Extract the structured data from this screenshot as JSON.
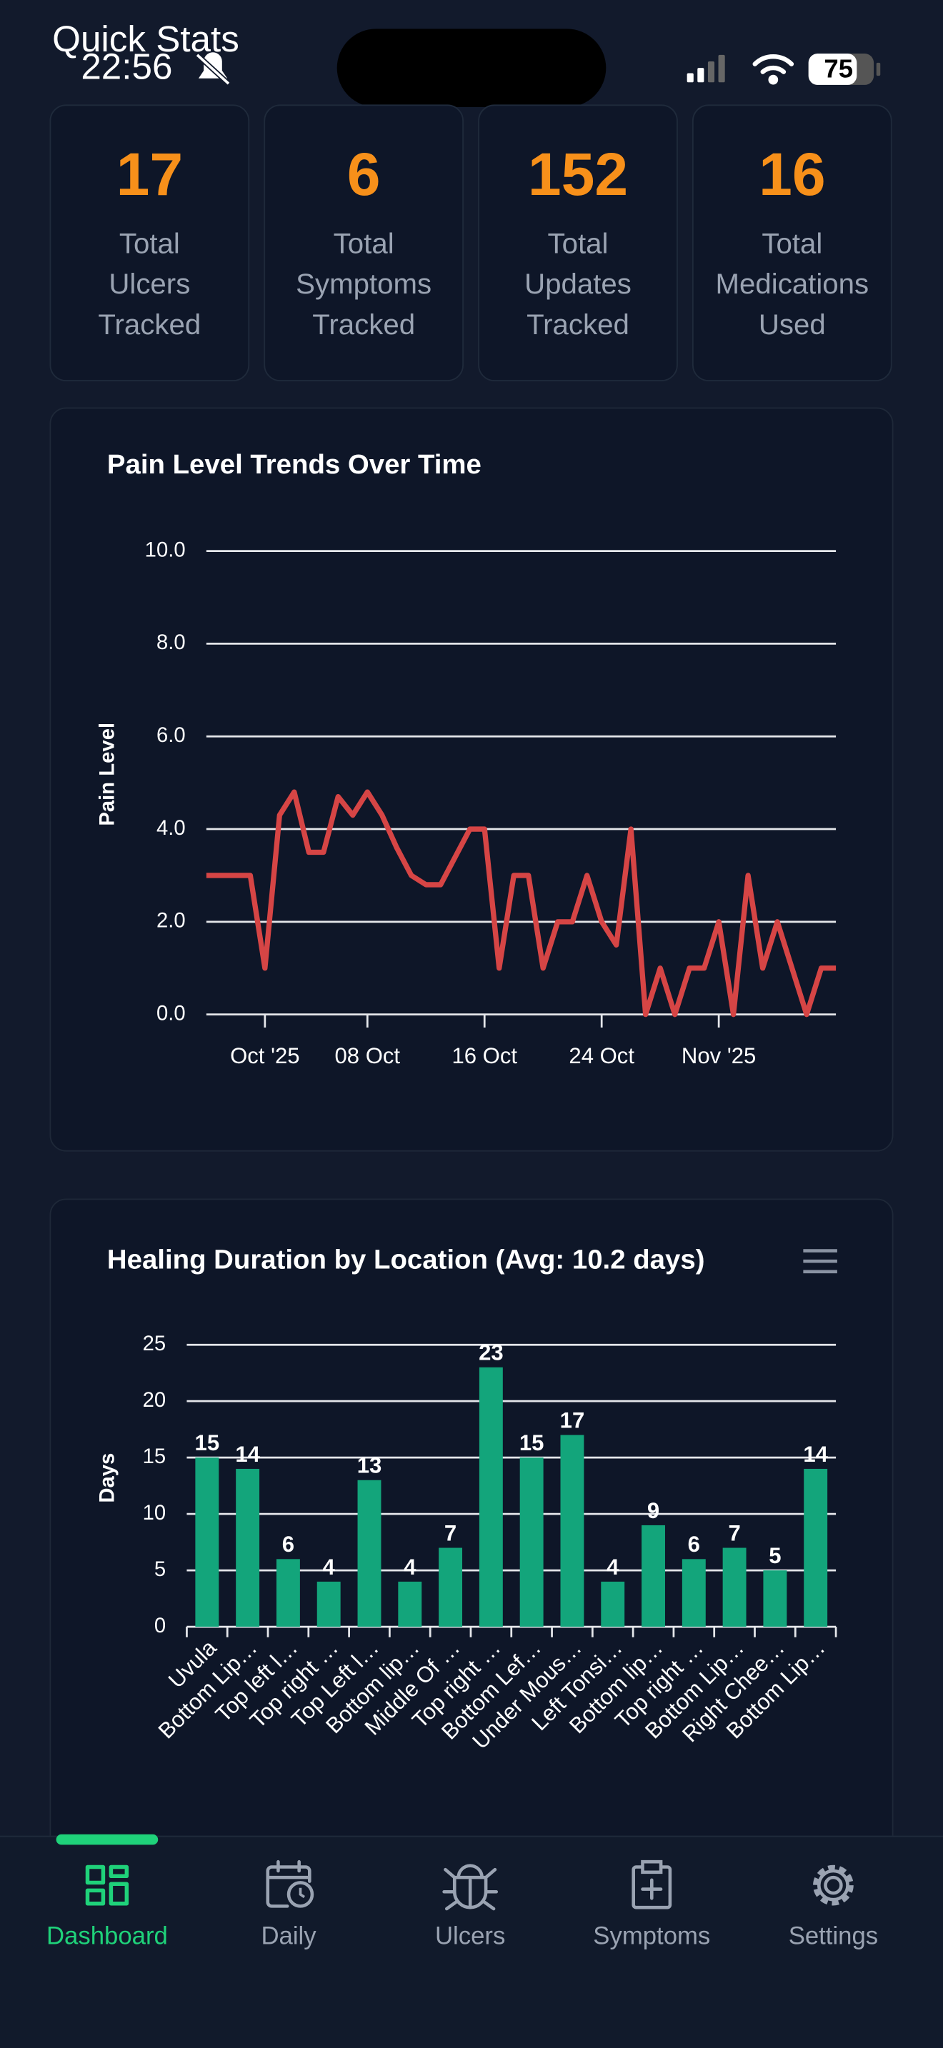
{
  "header": {
    "title": "Quick Stats"
  },
  "status_bar": {
    "time": "22:56",
    "battery": "75"
  },
  "stats": [
    {
      "value": 17,
      "label_lines": [
        "Total",
        "Ulcers",
        "Tracked"
      ]
    },
    {
      "value": 6,
      "label_lines": [
        "Total",
        "Symptoms",
        "Tracked"
      ]
    },
    {
      "value": 152,
      "label_lines": [
        "Total",
        "Updates",
        "Tracked"
      ]
    },
    {
      "value": 16,
      "label_lines": [
        "Total",
        "Medications",
        "Used"
      ]
    }
  ],
  "chart_data": [
    {
      "type": "line",
      "title": "Pain Level Trends Over Time",
      "y_label": "Pain Level",
      "color": "#d64545",
      "x": [
        "2025-09-27",
        "2025-09-28",
        "2025-09-29",
        "2025-09-30",
        "2025-10-01",
        "2025-10-02",
        "2025-10-03",
        "2025-10-04",
        "2025-10-05",
        "2025-10-06",
        "2025-10-07",
        "2025-10-08",
        "2025-10-09",
        "2025-10-10",
        "2025-10-11",
        "2025-10-12",
        "2025-10-13",
        "2025-10-14",
        "2025-10-15",
        "2025-10-16",
        "2025-10-17",
        "2025-10-18",
        "2025-10-19",
        "2025-10-20",
        "2025-10-21",
        "2025-10-22",
        "2025-10-23",
        "2025-10-24",
        "2025-10-25",
        "2025-10-26",
        "2025-10-27",
        "2025-10-28",
        "2025-10-29",
        "2025-10-30",
        "2025-10-31",
        "2025-11-01",
        "2025-11-02",
        "2025-11-03",
        "2025-11-04",
        "2025-11-05",
        "2025-11-06",
        "2025-11-07",
        "2025-11-08",
        "2025-11-09"
      ],
      "values": [
        3.0,
        3.0,
        3.0,
        3.0,
        1.0,
        4.3,
        4.8,
        3.5,
        3.5,
        4.7,
        4.3,
        4.8,
        4.3,
        3.6,
        3.0,
        2.8,
        2.8,
        3.4,
        4.0,
        4.0,
        1.0,
        3.0,
        3.0,
        1.0,
        2.0,
        2.0,
        3.0,
        2.0,
        1.5,
        4.0,
        0.0,
        1.0,
        0.0,
        1.0,
        1.0,
        2.0,
        0.0,
        3.0,
        1.0,
        2.0,
        1.0,
        0.0,
        1.0,
        1.0
      ],
      "xlim": [
        "2025-09-27",
        "2025-11-09"
      ],
      "xticks": [
        {
          "value": "2025-10-01",
          "label": "Oct '25"
        },
        {
          "value": "2025-10-08",
          "label": "08 Oct"
        },
        {
          "value": "2025-10-16",
          "label": "16 Oct"
        },
        {
          "value": "2025-10-24",
          "label": "24 Oct"
        },
        {
          "value": "2025-11-01",
          "label": "Nov '25"
        }
      ],
      "ylim": [
        0,
        10
      ],
      "yticks": [
        {
          "value": 0,
          "label": "0.0"
        },
        {
          "value": 2,
          "label": "2.0"
        },
        {
          "value": 4,
          "label": "4.0"
        },
        {
          "value": 6,
          "label": "6.0"
        },
        {
          "value": 8,
          "label": "8.0"
        },
        {
          "value": 10,
          "label": "10.0"
        }
      ],
      "grid": true
    },
    {
      "type": "bar",
      "title": "Healing Duration by Location (Avg: 10.2 days)",
      "y_label": "Days",
      "color": "#13a57b",
      "categories": [
        "Uvula",
        "Bottom Lip…",
        "Top left l…",
        "Top right …",
        "Top Left l…",
        "Bottom lip…",
        "Middle Of …",
        "Top right …",
        "Bottom Lef…",
        "Under Mous…",
        "Left Tonsi…",
        "Bottom lip…",
        "Top right …",
        "Bottom Lip…",
        "Right Chee…",
        "Bottom Lip…"
      ],
      "values": [
        15,
        14,
        6,
        4,
        13,
        4,
        7,
        23,
        15,
        17,
        4,
        9,
        6,
        7,
        5,
        14
      ],
      "ylim": [
        0,
        25
      ],
      "yticks": [
        0,
        5,
        10,
        15,
        20,
        25
      ],
      "grid": true,
      "data_labels": true
    }
  ],
  "nav": {
    "items": [
      {
        "label": "Dashboard",
        "active": true
      },
      {
        "label": "Daily",
        "active": false
      },
      {
        "label": "Ulcers",
        "active": false
      },
      {
        "label": "Symptoms",
        "active": false
      },
      {
        "label": "Settings",
        "active": false
      }
    ]
  }
}
